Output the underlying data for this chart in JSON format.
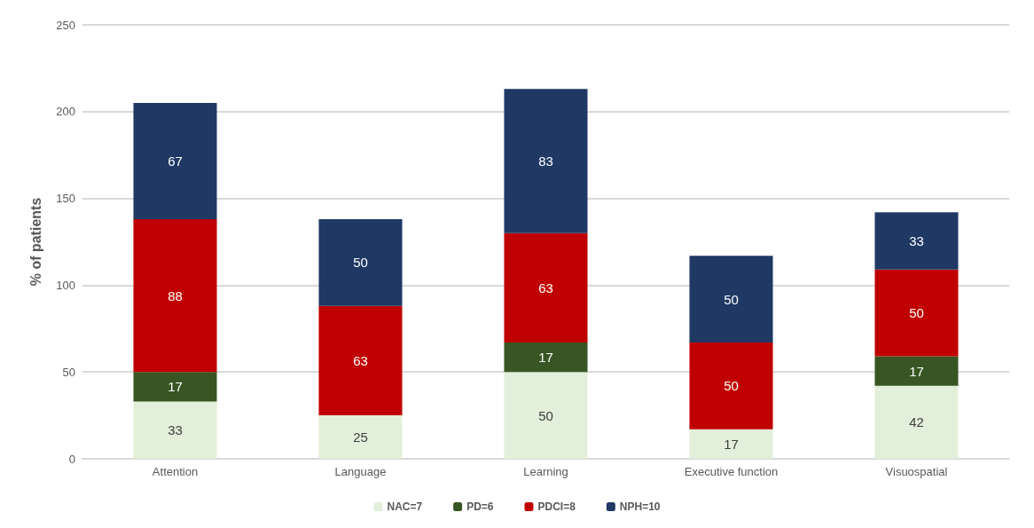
{
  "chart_data": {
    "type": "bar",
    "stacked": true,
    "ylabel": "% of patients",
    "categories": [
      "Attention",
      "Language",
      "Learning",
      "Executive function",
      "Visuospatial"
    ],
    "series": [
      {
        "name": "NAC=7",
        "color": "#e2efda",
        "values": [
          33,
          25,
          50,
          17,
          42
        ]
      },
      {
        "name": "PD=6",
        "color": "#375623",
        "values": [
          17,
          null,
          17,
          null,
          17
        ]
      },
      {
        "name": "PDCI=8",
        "color": "#c00000",
        "values": [
          88,
          63,
          63,
          50,
          50
        ]
      },
      {
        "name": "NPH=10",
        "color": "#1f3864",
        "values": [
          67,
          50,
          83,
          50,
          33
        ]
      }
    ],
    "ylim": [
      0,
      250
    ],
    "yticks": [
      0,
      50,
      100,
      150,
      200,
      250
    ],
    "grid": "y",
    "legend": "bottom",
    "data_labels": true
  }
}
